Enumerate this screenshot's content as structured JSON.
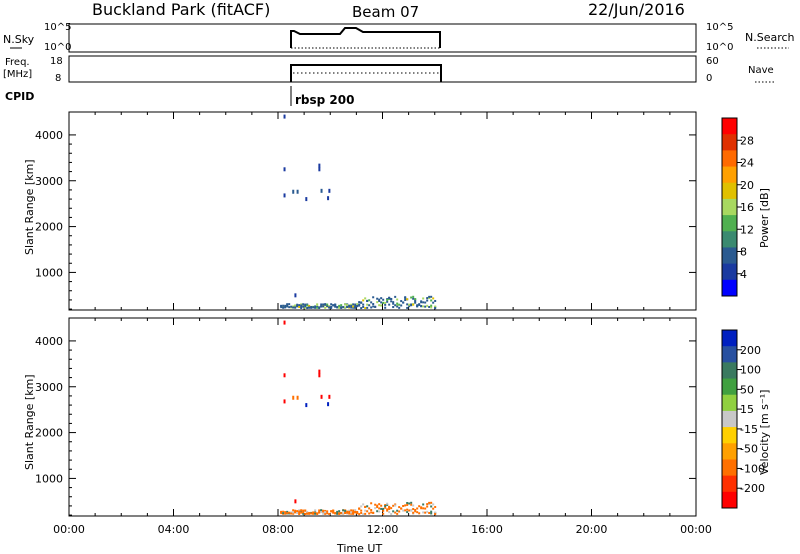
{
  "header": {
    "station": "Buckland Park (fitACF)",
    "beam": "Beam 07",
    "date": "22/Jun/2016"
  },
  "panels": {
    "nsky": {
      "left_label": "N.Sky",
      "right_label": "N.Search",
      "tick_top": "10^5",
      "tick_bottom": "10^0",
      "right_tick_top": "10^5",
      "right_tick_bottom": "10^0"
    },
    "freq": {
      "left_label_1": "Freq.",
      "left_label_2": "[MHz]",
      "right_label": "Nave",
      "tick_top": "18",
      "tick_bottom": "8",
      "right_tick_top": "60",
      "right_tick_bottom": "0"
    },
    "cpid": {
      "label": "CPID",
      "value": "rbsp 200"
    }
  },
  "power_colorbar": {
    "label": "Power [dB]",
    "ticks": [
      "28",
      "24",
      "20",
      "16",
      "12",
      "8",
      "4"
    ],
    "colors": [
      "#ff0000",
      "#e03000",
      "#ff6a00",
      "#ffa000",
      "#e0c000",
      "#a8d860",
      "#50b050",
      "#3a8a70",
      "#2a5a90",
      "#1a3aa0",
      "#0000ff"
    ]
  },
  "velocity_colorbar": {
    "label": "Velocity [m s⁻¹]",
    "ticks": [
      "200",
      "100",
      "50",
      "15",
      "-15",
      "-50",
      "-100",
      "-200"
    ],
    "colors": [
      "#0020c0",
      "#2850a0",
      "#3a7a60",
      "#40a040",
      "#90d040",
      "#c8c8c8",
      "#ffd000",
      "#ffa000",
      "#ff7000",
      "#ff3000",
      "#ff0000"
    ]
  },
  "chart_data": [
    {
      "type": "scatter",
      "title": "Power",
      "xlabel": "",
      "ylabel": "Slant Range [km]",
      "xlim": [
        "00:00",
        "24:00"
      ],
      "ylim": [
        180,
        4500
      ],
      "yticks": [
        "4000",
        "3000",
        "2000",
        "1000"
      ],
      "xticks": [],
      "points": [
        {
          "x": "08:15",
          "y": 4400,
          "power": 4
        },
        {
          "x": "08:15",
          "y": 3250,
          "power": 4
        },
        {
          "x": "08:15",
          "y": 2680,
          "power": 4
        },
        {
          "x": "08:35",
          "y": 2760,
          "power": 6
        },
        {
          "x": "08:45",
          "y": 2760,
          "power": 6
        },
        {
          "x": "09:05",
          "y": 2600,
          "power": 4
        },
        {
          "x": "09:35",
          "y": 3250,
          "power": 4
        },
        {
          "x": "09:35",
          "y": 3330,
          "power": 4
        },
        {
          "x": "09:40",
          "y": 2780,
          "power": 6
        },
        {
          "x": "09:55",
          "y": 2620,
          "power": 4
        },
        {
          "x": "09:58",
          "y": 2780,
          "power": 4
        },
        {
          "x": "08:40",
          "y": 500,
          "power": 4
        }
      ],
      "clutter_band": {
        "x_start": "08:05",
        "x_end": "14:00",
        "y_min": 200,
        "y_max": 450
      }
    },
    {
      "type": "scatter",
      "title": "Velocity",
      "xlabel": "Time UT",
      "ylabel": "Slant Range [km]",
      "xlim": [
        "00:00",
        "24:00"
      ],
      "ylim": [
        180,
        4500
      ],
      "yticks": [
        "4000",
        "3000",
        "2000",
        "1000"
      ],
      "xticks": [
        "00:00",
        "04:00",
        "08:00",
        "12:00",
        "16:00",
        "20:00",
        "00:00"
      ],
      "points": [
        {
          "x": "08:15",
          "y": 4400,
          "velocity": -200
        },
        {
          "x": "08:15",
          "y": 3250,
          "velocity": -200
        },
        {
          "x": "08:15",
          "y": 2680,
          "velocity": -200
        },
        {
          "x": "08:35",
          "y": 2760,
          "velocity": -100
        },
        {
          "x": "08:45",
          "y": 2760,
          "velocity": -100
        },
        {
          "x": "09:05",
          "y": 2600,
          "velocity": 200
        },
        {
          "x": "09:35",
          "y": 3250,
          "velocity": -200
        },
        {
          "x": "09:35",
          "y": 3330,
          "velocity": -200
        },
        {
          "x": "09:40",
          "y": 2780,
          "velocity": -200
        },
        {
          "x": "09:55",
          "y": 2620,
          "velocity": 200
        },
        {
          "x": "09:58",
          "y": 2780,
          "velocity": -200
        },
        {
          "x": "08:40",
          "y": 500,
          "velocity": -200
        }
      ],
      "clutter_band": {
        "x_start": "08:05",
        "x_end": "14:00",
        "y_min": 200,
        "y_max": 450
      }
    }
  ]
}
